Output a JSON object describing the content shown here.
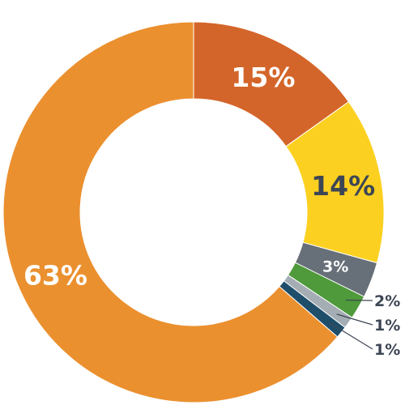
{
  "chart_data": {
    "type": "pie",
    "donut": true,
    "legend": "none",
    "slices": [
      {
        "value": 15,
        "label": "15%",
        "color": "#d4652a",
        "label_color": "#ffffff"
      },
      {
        "value": 14,
        "label": "14%",
        "color": "#fcd020",
        "label_color": "#3d4654"
      },
      {
        "value": 3,
        "label": "3%",
        "color": "#677078",
        "label_color": "#ffffff"
      },
      {
        "value": 2,
        "label": "2%",
        "color": "#4f9a3b",
        "label_color": "#3d4654"
      },
      {
        "value": 1,
        "label": "1%",
        "color": "#a4adb3",
        "label_color": "#3d4654"
      },
      {
        "value": 1,
        "label": "1%",
        "color": "#1f4e6b",
        "label_color": "#3d4654"
      },
      {
        "value": 63,
        "label": "63%",
        "color": "#eb902f",
        "label_color": "#ffffff"
      }
    ]
  }
}
